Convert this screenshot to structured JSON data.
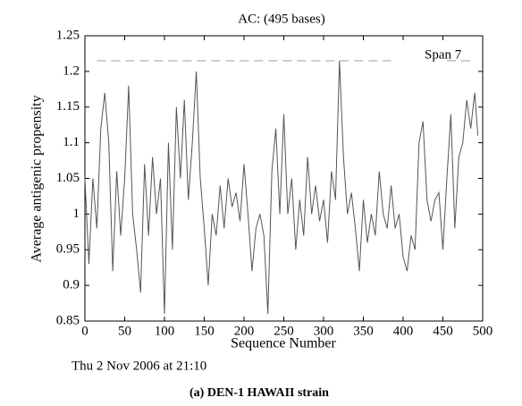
{
  "chart_data": {
    "type": "line",
    "title": "AC: (495 bases)",
    "x_label": "Sequence Number",
    "y_label": "Average antigenic propensity",
    "annotation": "Span  7",
    "timestamp": "Thu 2 Nov 2006 at 21:10",
    "caption": "(a) DEN-1 HAWAII strain",
    "color": "#555555",
    "reference_line": {
      "value": 1.215,
      "x_ranges": [
        [
          15,
          385
        ],
        [
          455,
          490
        ]
      ],
      "color": "#aaaaaa"
    },
    "xlim": [
      0,
      500
    ],
    "xticks": [
      0,
      50,
      100,
      150,
      200,
      250,
      300,
      350,
      400,
      450,
      500
    ],
    "ylim": [
      0.85,
      1.25
    ],
    "yticks": [
      0.85,
      0.9,
      0.95,
      1,
      1.05,
      1.1,
      1.15,
      1.2,
      1.25
    ],
    "x": [
      0,
      5,
      10,
      15,
      20,
      25,
      30,
      35,
      40,
      45,
      50,
      55,
      60,
      65,
      70,
      75,
      80,
      85,
      90,
      95,
      100,
      105,
      110,
      115,
      120,
      125,
      130,
      135,
      140,
      145,
      150,
      155,
      160,
      165,
      170,
      175,
      180,
      185,
      190,
      195,
      200,
      205,
      210,
      215,
      220,
      225,
      230,
      235,
      240,
      245,
      250,
      255,
      260,
      265,
      270,
      275,
      280,
      285,
      290,
      295,
      300,
      305,
      310,
      315,
      320,
      325,
      330,
      335,
      340,
      345,
      350,
      355,
      360,
      365,
      370,
      375,
      380,
      385,
      390,
      395,
      400,
      405,
      410,
      415,
      420,
      425,
      430,
      435,
      440,
      445,
      450,
      455,
      460,
      465,
      470,
      475,
      480,
      485,
      490,
      494
    ],
    "values": [
      1.05,
      0.93,
      1.05,
      0.98,
      1.12,
      1.17,
      1.1,
      0.92,
      1.06,
      0.97,
      1.05,
      1.18,
      1.0,
      0.95,
      0.89,
      1.07,
      0.97,
      1.08,
      1.0,
      1.05,
      0.86,
      1.1,
      0.95,
      1.15,
      1.05,
      1.16,
      1.02,
      1.1,
      1.2,
      1.05,
      0.98,
      0.9,
      1.0,
      0.97,
      1.04,
      0.98,
      1.05,
      1.01,
      1.03,
      0.99,
      1.07,
      1.0,
      0.92,
      0.98,
      1.0,
      0.97,
      0.86,
      1.06,
      1.12,
      1.0,
      1.14,
      1.0,
      1.05,
      0.95,
      1.02,
      0.97,
      1.08,
      1.0,
      1.04,
      0.99,
      1.02,
      0.96,
      1.06,
      1.02,
      1.215,
      1.08,
      1.0,
      1.03,
      0.98,
      0.92,
      1.02,
      0.96,
      1.0,
      0.97,
      1.06,
      1.0,
      0.98,
      1.04,
      0.98,
      1.0,
      0.94,
      0.92,
      0.97,
      0.95,
      1.1,
      1.13,
      1.02,
      0.99,
      1.02,
      1.03,
      0.95,
      1.05,
      1.14,
      0.98,
      1.08,
      1.1,
      1.16,
      1.12,
      1.17,
      1.11
    ]
  }
}
